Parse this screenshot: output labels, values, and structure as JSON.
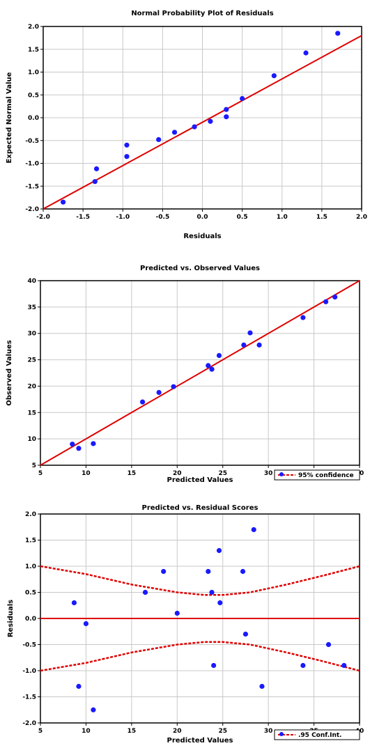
{
  "colors": {
    "point": "#1a1aff",
    "line": "#e00000",
    "grid": "#c8c8c8",
    "frame": "#000000"
  },
  "chart_data": [
    {
      "id": "npp",
      "type": "scatter",
      "title": "Normal Probability Plot of Residuals",
      "xlabel": "Residuals",
      "ylabel": "Expected Normal Value",
      "xlim": [
        -2.0,
        2.0
      ],
      "ylim": [
        -2.0,
        2.0
      ],
      "xticks": [
        "-2.0",
        "-1.5",
        "-1.0",
        "-0.5",
        "0.0",
        "0.5",
        "1.0",
        "1.5",
        "2.0"
      ],
      "yticks": [
        "-2.0",
        "-1.5",
        "-1.0",
        "-0.5",
        "0.0",
        "0.5",
        "1.0",
        "1.5",
        "2.0"
      ],
      "xtick_values": [
        -2,
        -1.5,
        -1,
        -0.5,
        0,
        0.5,
        1,
        1.5,
        2
      ],
      "ytick_values": [
        -2,
        -1.5,
        -1,
        -0.5,
        0,
        0.5,
        1,
        1.5,
        2
      ],
      "grid": true,
      "fit_line": [
        [
          -2.0,
          -2.0
        ],
        [
          2.0,
          1.8
        ]
      ],
      "points": [
        [
          -1.75,
          -1.85
        ],
        [
          -1.35,
          -1.4
        ],
        [
          -1.33,
          -1.12
        ],
        [
          -0.95,
          -0.85
        ],
        [
          -0.95,
          -0.6
        ],
        [
          -0.55,
          -0.48
        ],
        [
          -0.35,
          -0.32
        ],
        [
          -0.1,
          -0.2
        ],
        [
          0.1,
          -0.08
        ],
        [
          0.3,
          0.02
        ],
        [
          0.3,
          0.18
        ],
        [
          0.5,
          0.42
        ],
        [
          0.9,
          0.92
        ],
        [
          1.3,
          1.42
        ],
        [
          1.7,
          1.85
        ]
      ]
    },
    {
      "id": "pvo",
      "type": "scatter",
      "title": "Predicted vs. Observed Values",
      "xlabel": "Predicted Values",
      "ylabel": "Observed Values",
      "xlim": [
        5,
        40
      ],
      "ylim": [
        5,
        40
      ],
      "xticks": [
        "5",
        "10",
        "15",
        "20",
        "25",
        "30",
        "35",
        "40"
      ],
      "yticks": [
        "5",
        "10",
        "15",
        "20",
        "25",
        "30",
        "35",
        "40"
      ],
      "xtick_values": [
        5,
        10,
        15,
        20,
        25,
        30,
        35,
        40
      ],
      "ytick_values": [
        5,
        10,
        15,
        20,
        25,
        30,
        35,
        40
      ],
      "grid": true,
      "legend": "95% confidence",
      "fit_line": [
        [
          5,
          5
        ],
        [
          40,
          40
        ]
      ],
      "points": [
        [
          8.5,
          9
        ],
        [
          9.2,
          8.2
        ],
        [
          10.8,
          9.1
        ],
        [
          16.2,
          17
        ],
        [
          18,
          18.8
        ],
        [
          19.6,
          19.9
        ],
        [
          23.4,
          23.9
        ],
        [
          23.8,
          23.2
        ],
        [
          24.6,
          25.8
        ],
        [
          27.3,
          27.8
        ],
        [
          28,
          30.1
        ],
        [
          29,
          27.8
        ],
        [
          33.8,
          33
        ],
        [
          36.3,
          36
        ],
        [
          37.3,
          36.9
        ]
      ]
    },
    {
      "id": "pvr",
      "type": "scatter",
      "title": "Predicted vs. Residual Scores",
      "xlabel": "Predicted Values",
      "ylabel": "Residuals",
      "xlim": [
        5,
        40
      ],
      "ylim": [
        -2.0,
        2.0
      ],
      "xticks": [
        "5",
        "10",
        "15",
        "20",
        "25",
        "30",
        "35",
        "40"
      ],
      "yticks": [
        "-2.0",
        "-1.5",
        "-1.0",
        "-0.5",
        "0.0",
        "0.5",
        "1.0",
        "1.5",
        "2.0"
      ],
      "xtick_values": [
        5,
        10,
        15,
        20,
        25,
        30,
        35,
        40
      ],
      "ytick_values": [
        -2,
        -1.5,
        -1,
        -0.5,
        0,
        0.5,
        1,
        1.5,
        2
      ],
      "grid": true,
      "legend": ".95 Conf.Int.",
      "zero_line": 0.0,
      "band_upper": [
        [
          5,
          1.0
        ],
        [
          10,
          0.85
        ],
        [
          15,
          0.65
        ],
        [
          20,
          0.5
        ],
        [
          23,
          0.45
        ],
        [
          25,
          0.45
        ],
        [
          28,
          0.5
        ],
        [
          32,
          0.65
        ],
        [
          36,
          0.82
        ],
        [
          40,
          1.0
        ]
      ],
      "band_lower": [
        [
          5,
          -1.0
        ],
        [
          10,
          -0.85
        ],
        [
          15,
          -0.65
        ],
        [
          20,
          -0.5
        ],
        [
          23,
          -0.45
        ],
        [
          25,
          -0.45
        ],
        [
          28,
          -0.5
        ],
        [
          32,
          -0.65
        ],
        [
          36,
          -0.82
        ],
        [
          40,
          -1.0
        ]
      ],
      "points": [
        [
          8.7,
          0.3
        ],
        [
          9.2,
          -1.3
        ],
        [
          10,
          -0.1
        ],
        [
          10.8,
          -1.75
        ],
        [
          16.5,
          0.5
        ],
        [
          18.5,
          0.9
        ],
        [
          20,
          0.1
        ],
        [
          23.4,
          0.9
        ],
        [
          23.8,
          0.5
        ],
        [
          24,
          -0.9
        ],
        [
          24.6,
          1.3
        ],
        [
          24.7,
          0.3
        ],
        [
          27.2,
          0.9
        ],
        [
          27.5,
          -0.3
        ],
        [
          28.4,
          1.7
        ],
        [
          29.3,
          -1.3
        ],
        [
          33.8,
          -0.9
        ],
        [
          36.6,
          -0.5
        ],
        [
          38.3,
          -0.9
        ]
      ]
    }
  ]
}
